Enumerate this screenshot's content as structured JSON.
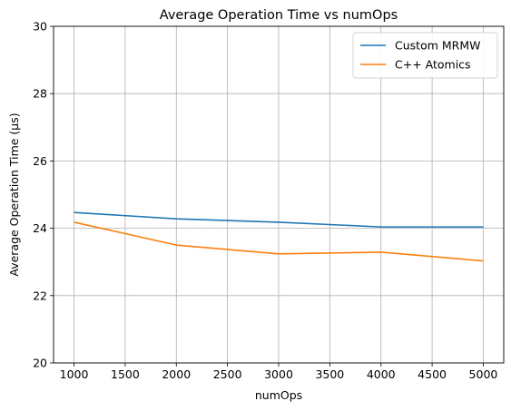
{
  "chart_data": {
    "type": "line",
    "title": "Average Operation Time vs numOps",
    "xlabel": "numOps",
    "ylabel": "Average Operation Time (µs)",
    "x": [
      1000,
      2000,
      3000,
      4000,
      5000
    ],
    "xlim": [
      800,
      5200
    ],
    "ylim": [
      20,
      30
    ],
    "xticks": [
      1000,
      1500,
      2000,
      2500,
      3000,
      3500,
      4000,
      4500,
      5000
    ],
    "yticks": [
      20,
      22,
      24,
      26,
      28,
      30
    ],
    "grid": true,
    "legend_position": "top-right",
    "series": [
      {
        "name": "Custom MRMW",
        "color": "#1f77b4",
        "values": [
          24.47,
          24.28,
          24.18,
          24.04,
          24.04
        ]
      },
      {
        "name": "C++ Atomics",
        "color": "#ff7f0e",
        "values": [
          24.18,
          23.5,
          23.24,
          23.29,
          23.03
        ]
      }
    ]
  }
}
